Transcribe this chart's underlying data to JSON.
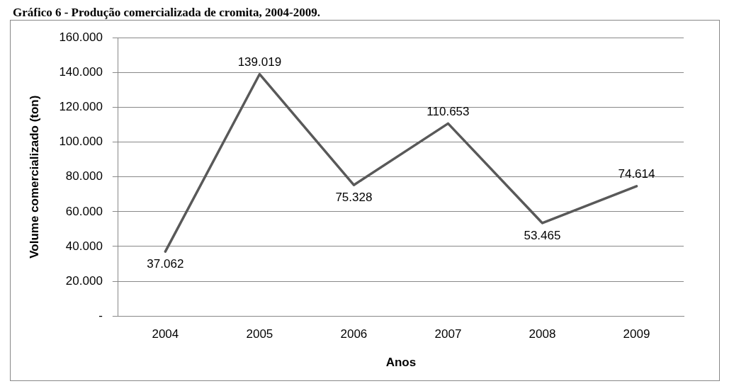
{
  "chart_data": {
    "type": "line",
    "title": "Gráfico 6 - Produção comercializada de cromita, 2004-2009.",
    "xlabel": "Anos",
    "ylabel": "Volume comercializado (ton)",
    "categories": [
      "2004",
      "2005",
      "2006",
      "2007",
      "2008",
      "2009"
    ],
    "series": [
      {
        "color": "#595959",
        "values": [
          37062,
          139019,
          75328,
          110653,
          53465,
          74614
        ],
        "value_labels": [
          "37.062",
          "139.019",
          "75.328",
          "110.653",
          "53.465",
          "74.614"
        ]
      }
    ],
    "ylim": [
      0,
      160000
    ],
    "yticks": [
      {
        "value": 0,
        "label": "-"
      },
      {
        "value": 20000,
        "label": "20.000"
      },
      {
        "value": 40000,
        "label": "40.000"
      },
      {
        "value": 60000,
        "label": "60.000"
      },
      {
        "value": 80000,
        "label": "80.000"
      },
      {
        "value": 100000,
        "label": "100.000"
      },
      {
        "value": 120000,
        "label": "120.000"
      },
      {
        "value": 140000,
        "label": "140.000"
      },
      {
        "value": 160000,
        "label": "160.000"
      }
    ],
    "grid": "y",
    "legend": false,
    "marker": "none",
    "line_style": "solid"
  }
}
